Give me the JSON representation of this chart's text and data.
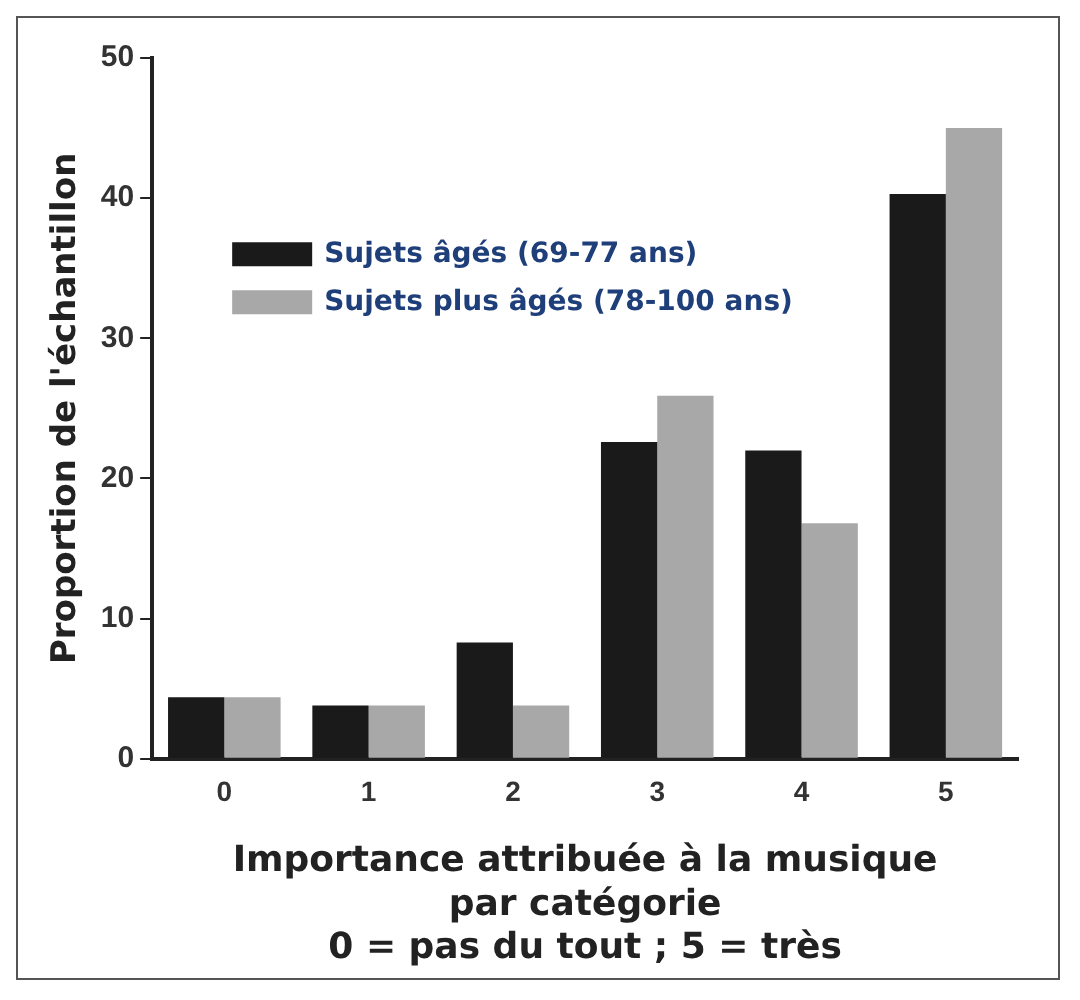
{
  "chart_data": {
    "type": "bar",
    "xlabel": "Importance attribuée à la musique\npar catégorie\n0 = pas du tout ; 5 = très",
    "ylabel": "Proportion de l'échantillon",
    "categories": [
      "0",
      "1",
      "2",
      "3",
      "4",
      "5"
    ],
    "series": [
      {
        "name": "Sujets âgés (69-77 ans)",
        "color": "#1a1a1a",
        "values": [
          4.4,
          3.8,
          8.3,
          22.6,
          22.0,
          40.3
        ]
      },
      {
        "name": "Sujets plus âgés (78-100 ans)",
        "color": "#a8a8a8",
        "values": [
          4.4,
          3.8,
          3.8,
          25.9,
          16.8,
          45.0
        ]
      }
    ],
    "ylim": [
      0,
      50
    ],
    "yticks": [
      0,
      10,
      20,
      30,
      40,
      50
    ],
    "grid": false,
    "legend": "top left"
  }
}
